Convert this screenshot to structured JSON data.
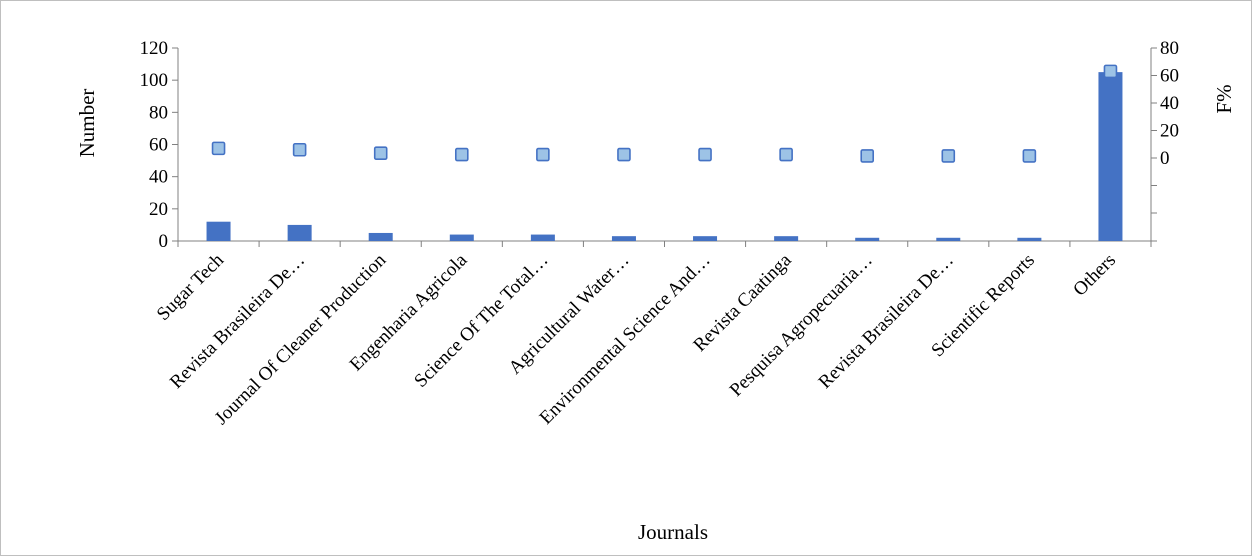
{
  "chart_data": {
    "type": "bar",
    "categories": [
      "Sugar Tech",
      "Revista Brasileira De…",
      "Journal Of Cleaner Production",
      "Engenharia Agricola",
      "Science Of The Total…",
      "Agricultural Water…",
      "Environmental Science And…",
      "Revista Caatinga",
      "Pesquisa Agropecuaria…",
      "Revista Brasileira De…",
      "Scientific Reports",
      "Others"
    ],
    "series": [
      {
        "type": "bar",
        "axis": "left",
        "values": [
          12,
          10,
          5,
          4,
          4,
          3,
          3,
          3,
          2,
          2,
          2,
          105
        ]
      },
      {
        "type": "scatter",
        "axis": "right",
        "values": [
          7,
          6,
          3.5,
          2.5,
          2.5,
          2.5,
          2.5,
          2.5,
          1.5,
          1.5,
          1.5,
          63
        ]
      }
    ],
    "xlabel": "Journals",
    "ylabel": "Number",
    "y2label": "F%",
    "ylim": [
      0,
      120
    ],
    "yticks": [
      0,
      20,
      40,
      60,
      80,
      100,
      120
    ],
    "y2ticks": [
      0,
      20,
      40,
      60,
      80
    ],
    "grid": false,
    "colors": {
      "bar": "#4472c4",
      "marker_fill": "#9dc3e6",
      "marker_stroke": "#4472c4",
      "axis": "#808080"
    }
  }
}
